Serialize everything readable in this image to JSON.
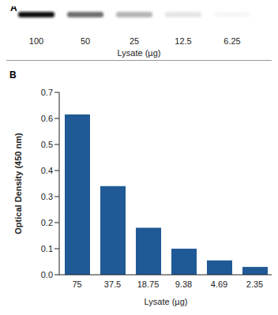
{
  "chart_data": [
    {
      "type": "blot",
      "title": "A",
      "categories": [
        "100",
        "50",
        "25",
        "12.5",
        "6.25"
      ],
      "values": [
        1.0,
        0.6,
        0.3,
        0.1,
        0.03
      ],
      "x_label": "Lysate (µg)",
      "color": "#111111"
    },
    {
      "type": "bar",
      "title": "B",
      "categories": [
        "75",
        "37.5",
        "18.75",
        "9.38",
        "4.69",
        "2.35"
      ],
      "values": [
        0.615,
        0.34,
        0.18,
        0.1,
        0.055,
        0.03
      ],
      "color": "#1f5a96",
      "x_label": "Lysate (µg)",
      "y_label": "Optical Density (450 nm)",
      "ylim": [
        0,
        0.7
      ],
      "yticks": [
        {
          "value": 0,
          "label": "0.0"
        },
        0.1,
        0.2,
        0.3,
        0.4,
        0.5,
        0.6,
        0.7
      ],
      "grid": false
    }
  ]
}
